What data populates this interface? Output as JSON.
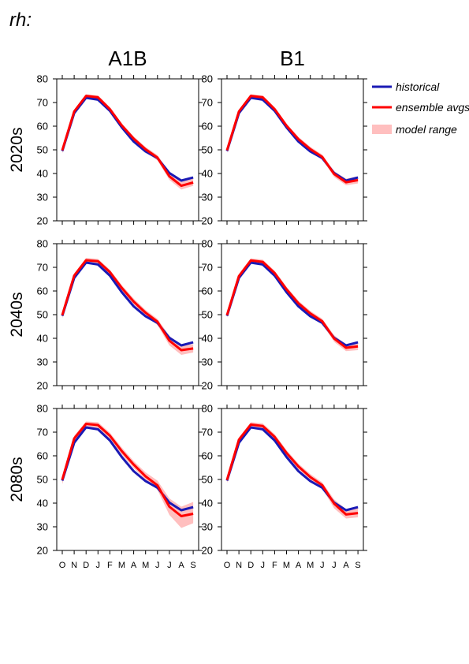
{
  "figure": {
    "variable_label": "rh:",
    "columns": [
      "A1B",
      "B1"
    ],
    "rows": [
      "2020s",
      "2040s",
      "2080s"
    ]
  },
  "legend": {
    "historical": "historical",
    "ensemble": "ensemble avgs",
    "range": "model range"
  },
  "colors": {
    "historical": "#1a1ab5",
    "ensemble": "#ff0000",
    "range": "#ffbfbf"
  },
  "chart_data": {
    "type": "line",
    "categories": [
      "O",
      "N",
      "D",
      "J",
      "F",
      "M",
      "A",
      "M",
      "J",
      "J",
      "A",
      "S"
    ],
    "ylim": [
      20,
      80
    ],
    "yticks": [
      20,
      30,
      40,
      50,
      60,
      70,
      80
    ],
    "historical": [
      49.5,
      65.5,
      72.0,
      71.2,
      66.5,
      59.5,
      53.5,
      49.3,
      46.5,
      40.2,
      37.0,
      38.3
    ],
    "panels": [
      {
        "row": "2020s",
        "col": "A1B",
        "ensemble": [
          49.8,
          66.2,
          72.8,
          72.2,
          67.2,
          60.3,
          54.7,
          50.2,
          46.7,
          38.8,
          34.8,
          36.2
        ],
        "range_low": [
          48.5,
          65.0,
          71.8,
          71.0,
          66.0,
          59.2,
          53.5,
          49.0,
          45.5,
          37.3,
          33.2,
          34.8
        ],
        "range_high": [
          50.6,
          67.0,
          73.5,
          73.0,
          68.0,
          61.2,
          55.7,
          51.2,
          47.8,
          40.3,
          36.8,
          37.8
        ]
      },
      {
        "row": "2020s",
        "col": "B1",
        "ensemble": [
          49.8,
          66.2,
          72.8,
          72.2,
          67.2,
          60.2,
          54.5,
          50.3,
          47.0,
          39.8,
          36.3,
          37.2
        ],
        "range_low": [
          48.7,
          65.2,
          72.0,
          71.3,
          66.2,
          59.2,
          53.5,
          49.3,
          46.0,
          38.5,
          35.0,
          35.8
        ],
        "range_high": [
          50.6,
          67.0,
          73.5,
          73.0,
          68.0,
          61.0,
          55.5,
          51.3,
          48.0,
          41.0,
          37.8,
          38.8
        ]
      },
      {
        "row": "2040s",
        "col": "A1B",
        "ensemble": [
          49.8,
          66.5,
          73.0,
          72.6,
          68.0,
          61.3,
          55.5,
          50.8,
          47.0,
          39.0,
          35.0,
          35.7
        ],
        "range_low": [
          48.5,
          65.3,
          72.0,
          71.5,
          66.8,
          60.0,
          54.3,
          49.5,
          45.6,
          37.0,
          33.0,
          34.0
        ],
        "range_high": [
          50.8,
          67.5,
          74.0,
          73.6,
          69.0,
          62.5,
          56.8,
          52.0,
          48.2,
          41.0,
          37.0,
          37.5
        ]
      },
      {
        "row": "2040s",
        "col": "B1",
        "ensemble": [
          49.8,
          66.3,
          72.9,
          72.3,
          67.6,
          60.7,
          54.8,
          50.5,
          47.2,
          39.9,
          36.0,
          36.6
        ],
        "range_low": [
          48.7,
          65.3,
          72.0,
          71.4,
          66.6,
          59.6,
          53.8,
          49.4,
          46.1,
          38.5,
          34.6,
          35.0
        ],
        "range_high": [
          50.7,
          67.2,
          73.8,
          73.3,
          68.6,
          61.8,
          55.9,
          51.6,
          48.3,
          41.3,
          37.5,
          38.2
        ]
      },
      {
        "row": "2080s",
        "col": "A1B",
        "ensemble": [
          49.9,
          67.3,
          73.5,
          73.0,
          68.5,
          62.0,
          56.3,
          51.3,
          47.5,
          38.5,
          34.5,
          35.5
        ],
        "range_low": [
          48.0,
          65.5,
          72.3,
          71.7,
          67.0,
          60.5,
          54.8,
          49.8,
          45.6,
          35.0,
          29.5,
          31.5
        ],
        "range_high": [
          51.0,
          68.5,
          74.5,
          74.2,
          69.8,
          63.5,
          57.8,
          53.0,
          49.5,
          42.0,
          38.5,
          40.5
        ]
      },
      {
        "row": "2080s",
        "col": "B1",
        "ensemble": [
          49.8,
          66.8,
          73.2,
          72.6,
          68.0,
          61.2,
          55.5,
          51.0,
          47.6,
          39.8,
          35.2,
          35.8
        ],
        "range_low": [
          48.5,
          65.6,
          72.2,
          71.5,
          66.8,
          60.0,
          54.3,
          49.8,
          46.2,
          37.8,
          33.5,
          34.0
        ],
        "range_high": [
          50.8,
          67.8,
          74.2,
          73.7,
          69.2,
          62.4,
          56.7,
          52.3,
          48.8,
          41.6,
          37.4,
          38.0
        ]
      }
    ]
  }
}
